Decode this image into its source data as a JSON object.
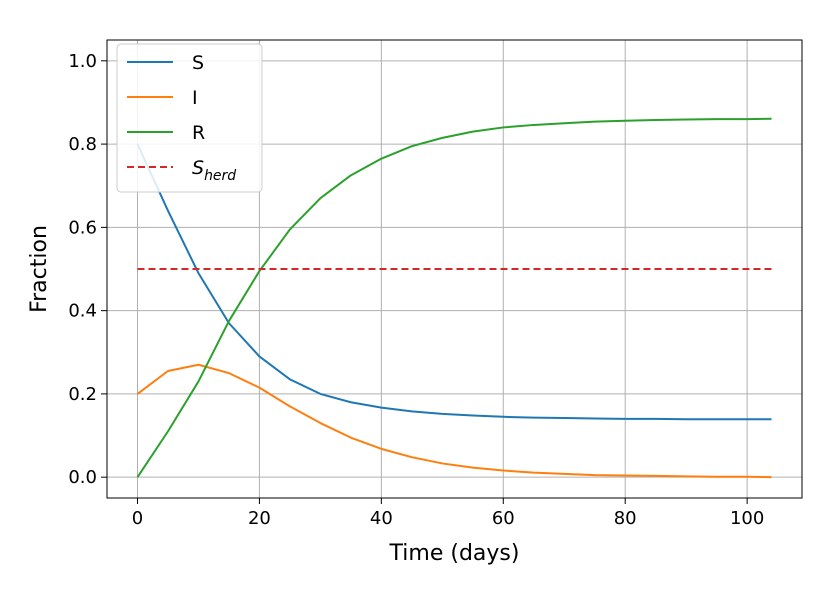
{
  "chart_data": {
    "type": "line",
    "xlabel": "Time (days)",
    "ylabel": "Fraction",
    "xlim": [
      -5,
      109
    ],
    "ylim": [
      -0.05,
      1.05
    ],
    "xticks": [
      0,
      20,
      40,
      60,
      80,
      100
    ],
    "xtick_labels": [
      "0",
      "20",
      "40",
      "60",
      "80",
      "100"
    ],
    "yticks": [
      0.0,
      0.2,
      0.4,
      0.6,
      0.8,
      1.0
    ],
    "ytick_labels": [
      "0.0",
      "0.2",
      "0.4",
      "0.6",
      "0.8",
      "1.0"
    ],
    "grid": true,
    "legend_position": "top-left",
    "x": [
      0,
      5,
      10,
      15,
      20,
      25,
      30,
      35,
      40,
      45,
      50,
      55,
      60,
      65,
      70,
      75,
      80,
      85,
      90,
      95,
      100,
      104
    ],
    "series": [
      {
        "name": "S",
        "color": "#1f77b4",
        "style": "solid",
        "values": [
          0.8,
          0.64,
          0.49,
          0.37,
          0.29,
          0.235,
          0.2,
          0.18,
          0.167,
          0.158,
          0.152,
          0.148,
          0.145,
          0.143,
          0.142,
          0.141,
          0.14,
          0.14,
          0.139,
          0.139,
          0.139,
          0.139
        ]
      },
      {
        "name": "I",
        "color": "#ff7f0e",
        "style": "solid",
        "values": [
          0.2,
          0.255,
          0.27,
          0.25,
          0.215,
          0.17,
          0.13,
          0.095,
          0.068,
          0.048,
          0.033,
          0.023,
          0.016,
          0.011,
          0.008,
          0.005,
          0.004,
          0.003,
          0.002,
          0.001,
          0.001,
          0.0
        ]
      },
      {
        "name": "R",
        "color": "#2ca02c",
        "style": "solid",
        "values": [
          0.0,
          0.11,
          0.23,
          0.375,
          0.495,
          0.595,
          0.67,
          0.725,
          0.765,
          0.795,
          0.815,
          0.83,
          0.84,
          0.846,
          0.85,
          0.854,
          0.856,
          0.858,
          0.859,
          0.86,
          0.86,
          0.861
        ]
      },
      {
        "name": "S",
        "name_subscript": "herd",
        "color": "#d62728",
        "style": "dashed",
        "values": [
          0.5,
          0.5,
          0.5,
          0.5,
          0.5,
          0.5,
          0.5,
          0.5,
          0.5,
          0.5,
          0.5,
          0.5,
          0.5,
          0.5,
          0.5,
          0.5,
          0.5,
          0.5,
          0.5,
          0.5,
          0.5,
          0.5
        ]
      }
    ]
  }
}
